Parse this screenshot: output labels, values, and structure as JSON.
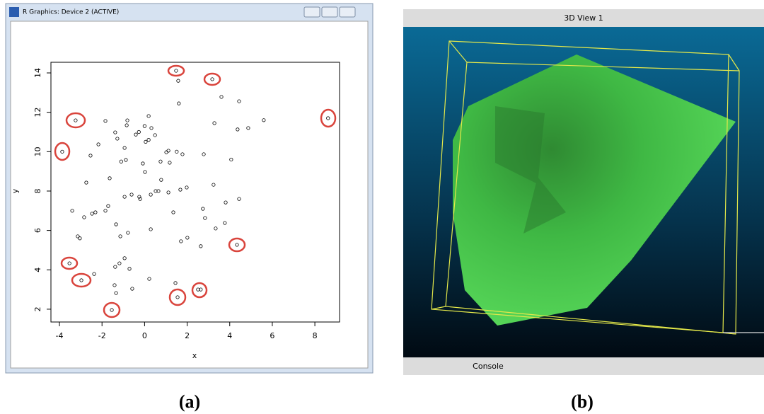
{
  "left_window": {
    "title": "R Graphics: Device 2 (ACTIVE)",
    "chart_data": {
      "type": "scatter",
      "xlabel": "x",
      "ylabel": "y",
      "color": "#000000",
      "x": [
        1.48,
        3.18,
        1.58,
        3.61,
        4.44,
        1.61,
        -3.24,
        -1.84,
        -0.81,
        0.19,
        8.62,
        5.6,
        4.87,
        4.37,
        3.28,
        -0.84,
        0,
        0.32,
        -1.38,
        -0.27,
        -0.41,
        0.49,
        -1.28,
        -2.17,
        -3.87,
        -0.94,
        0.05,
        0.19,
        1.02,
        1.12,
        1.51,
        1.78,
        2.78,
        -2.54,
        4.07,
        -0.88,
        -1.1,
        -0.08,
        0.75,
        1.18,
        0.02,
        -2.74,
        -1.64,
        0.78,
        3.24,
        1.98,
        1.68,
        0.52,
        0.65,
        1.12,
        -0.61,
        -0.94,
        -0.25,
        -0.21,
        0.29,
        4.44,
        3.81,
        -1.71,
        2.74,
        -3.4,
        -1.84,
        -2.31,
        -2.47,
        1.35,
        2.84,
        -2.84,
        -1.34,
        3.77,
        3.34,
        0.29,
        -0.78,
        -1.14,
        -3.14,
        -3.04,
        2.01,
        1.71,
        2.64,
        4.34,
        -0.94,
        -3.53,
        -1.18,
        -1.38,
        -0.71,
        -2.37,
        -2.97,
        0.22,
        -1.41,
        1.45,
        -0.58,
        2.51,
        2.64,
        -1.34,
        1.55,
        -1.54
      ],
      "y": [
        14.11,
        13.68,
        13.6,
        12.78,
        12.56,
        12.45,
        11.59,
        11.56,
        11.59,
        11.81,
        11.7,
        11.6,
        11.2,
        11.13,
        11.45,
        11.34,
        11.3,
        11.2,
        10.98,
        11.0,
        10.87,
        10.84,
        10.66,
        10.37,
        10.0,
        10.19,
        10.5,
        10.6,
        9.97,
        10.05,
        10.0,
        9.87,
        9.87,
        9.8,
        9.6,
        9.58,
        9.5,
        9.4,
        9.5,
        9.44,
        8.97,
        8.43,
        8.65,
        8.57,
        8.32,
        8.18,
        8.07,
        8.0,
        8.0,
        7.93,
        7.82,
        7.71,
        7.71,
        7.6,
        7.82,
        7.6,
        7.42,
        7.24,
        7.1,
        7.0,
        7.0,
        6.92,
        6.85,
        6.92,
        6.63,
        6.67,
        6.31,
        6.38,
        6.1,
        6.06,
        5.88,
        5.7,
        5.7,
        5.6,
        5.63,
        5.45,
        5.2,
        5.27,
        4.59,
        4.33,
        4.33,
        4.15,
        4.05,
        3.79,
        3.47,
        3.54,
        3.22,
        3.33,
        3.04,
        3.0,
        3.0,
        2.82,
        2.61,
        1.96
      ],
      "xlim": [
        -4.4,
        9.16
      ],
      "ylim": [
        1.35,
        14.54
      ],
      "xticks": [
        -4,
        -2,
        0,
        2,
        4,
        6,
        8
      ],
      "yticks": [
        2,
        4,
        6,
        8,
        10,
        12,
        14
      ]
    }
  },
  "right_window": {
    "title": "3D View 1",
    "footer": "Console"
  },
  "captions": [
    "(a)",
    "(b)"
  ]
}
